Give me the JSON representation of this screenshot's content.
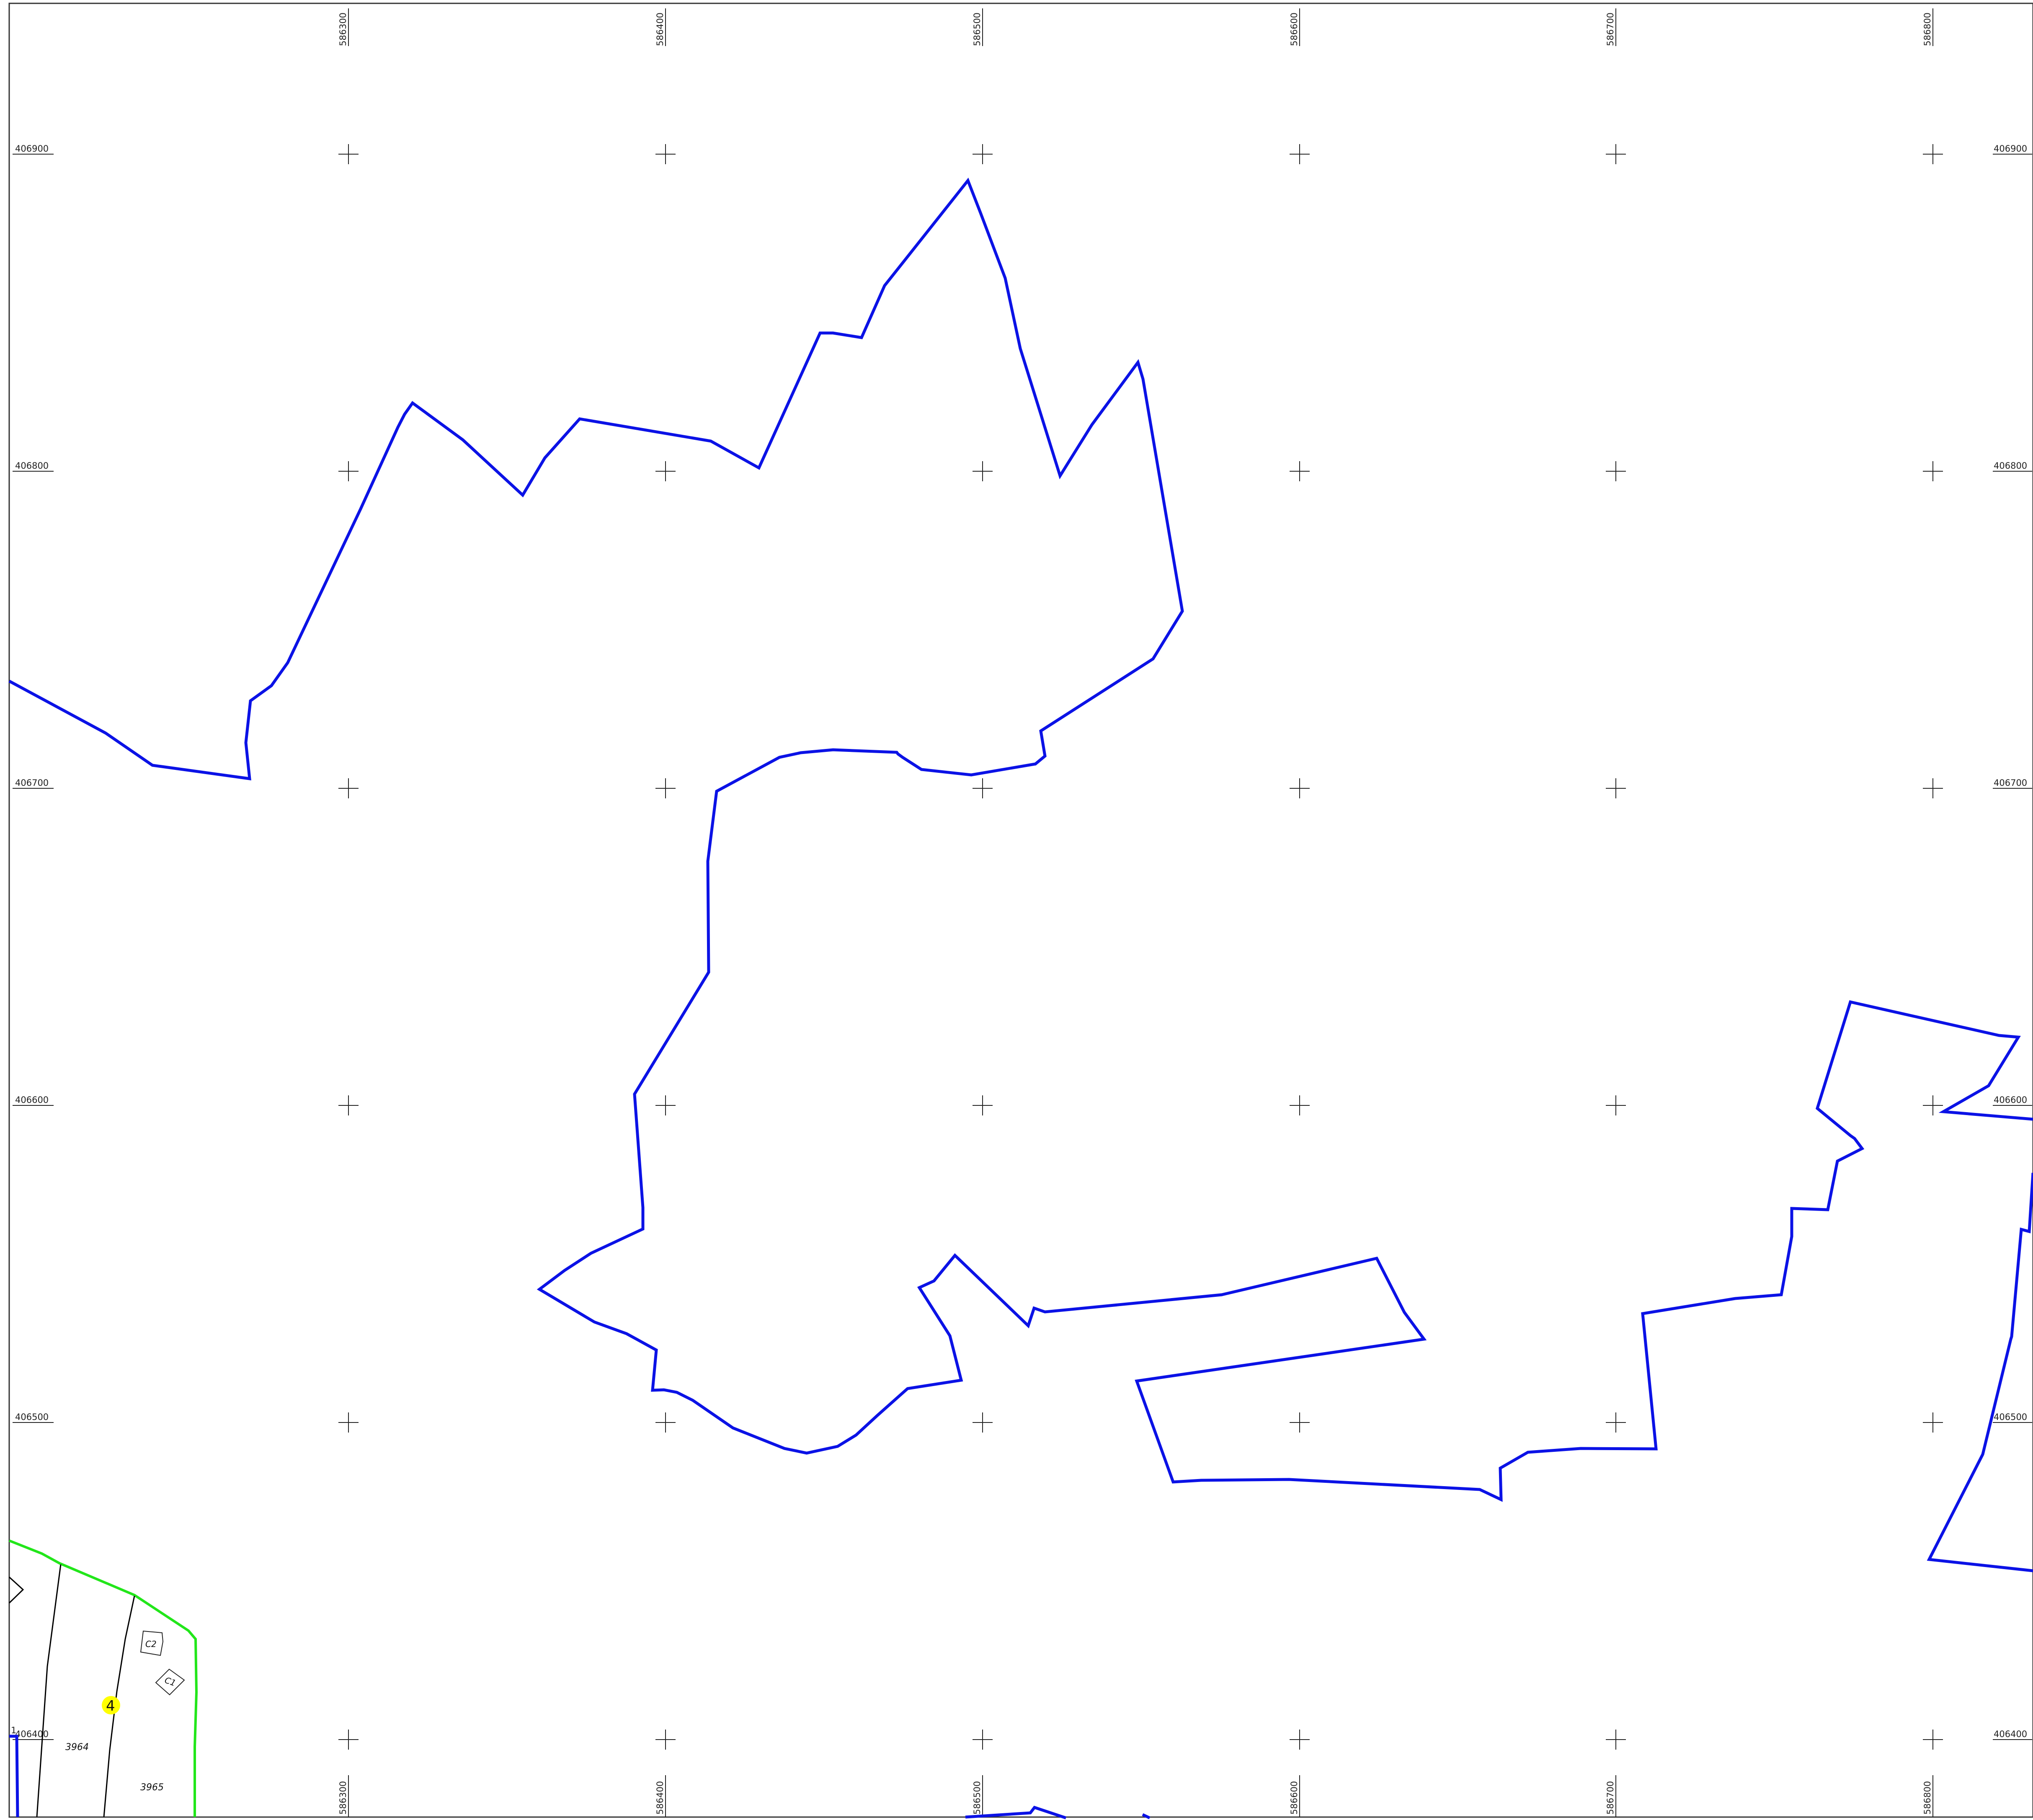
{
  "map": {
    "colors": {
      "parcel_outline": "#0b12e6",
      "highlight_boundary": "#22e61a",
      "lot_lines": "#000000",
      "grid_cross": "#222222",
      "frame": "#333333",
      "marker_fill": "#ffff00"
    },
    "easting_labels": [
      "586300",
      "586400",
      "586500",
      "586600",
      "586700",
      "586800"
    ],
    "northing_labels": [
      "406900",
      "406800",
      "406700",
      "406600",
      "406500",
      "406400"
    ],
    "lot_labels": [
      "3964",
      "3965"
    ],
    "building_labels": [
      "C2",
      "C1"
    ],
    "marker_label": "4",
    "corner_mark": "1"
  }
}
